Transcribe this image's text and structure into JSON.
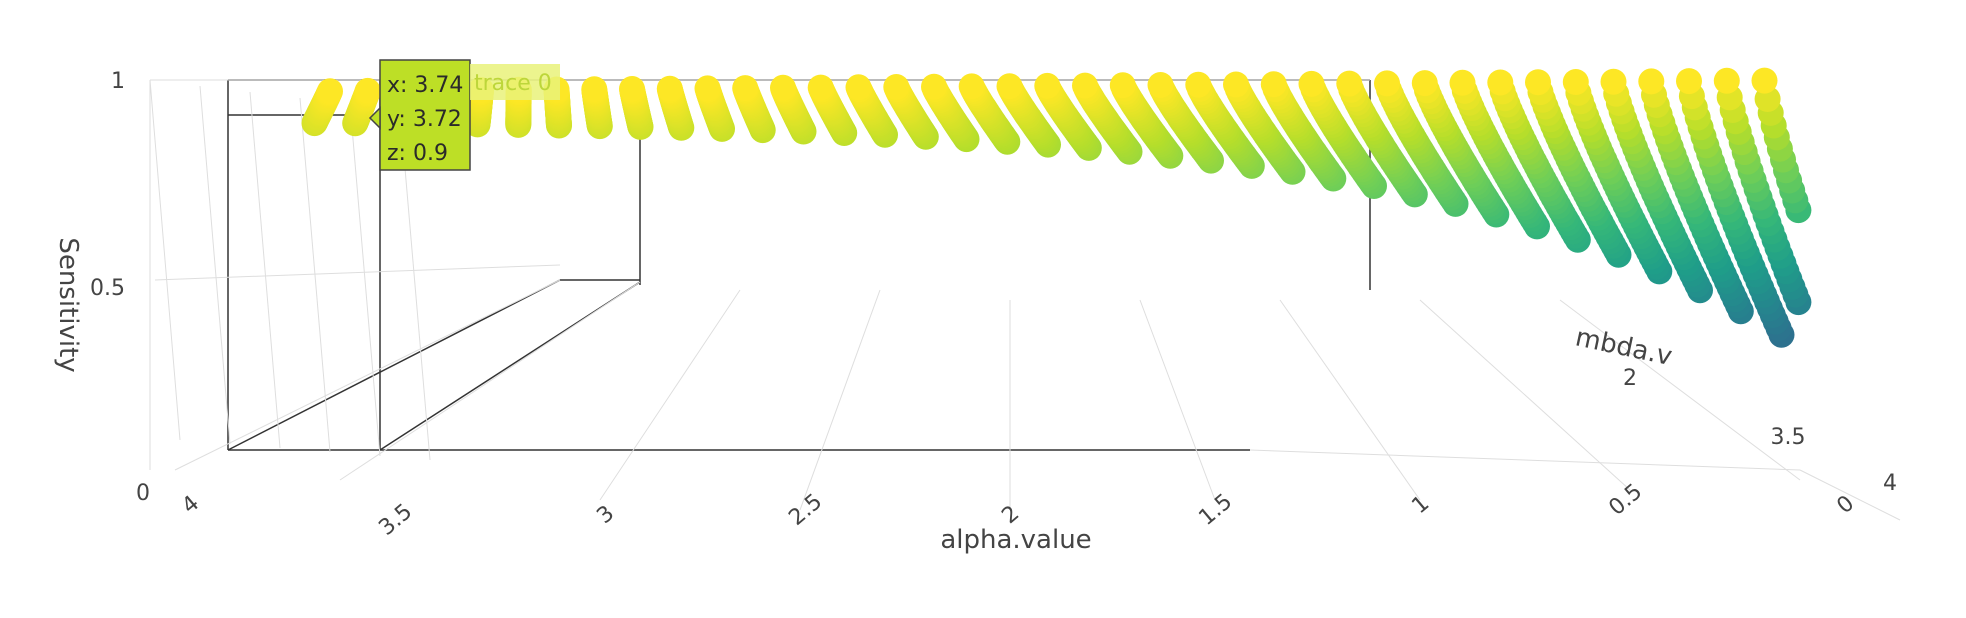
{
  "chart_data": {
    "type": "scatter3d",
    "colorscale": "Viridis",
    "color_by": "z",
    "axes": {
      "x": {
        "title": "alpha.value",
        "range": [
          0,
          4
        ],
        "ticks": [
          "0",
          "0.5",
          "1",
          "1.5",
          "2",
          "2.5",
          "3",
          "3.5",
          "4"
        ]
      },
      "y": {
        "title": "lambda.value",
        "visible_title": "mbda.v",
        "range": [
          0,
          4
        ],
        "ticks": [
          "2",
          "3.5",
          "4"
        ]
      },
      "z": {
        "title": "Sensitivity",
        "range": [
          0,
          1
        ],
        "ticks": [
          "0",
          "0.5",
          "1"
        ]
      }
    },
    "hover": {
      "x": "x: 3.74",
      "y": "y: 3.72",
      "z": "z: 0.9",
      "trace": "trace 0"
    },
    "series": [
      {
        "name": "trace 0",
        "description_of_surface": "Sensitivity rises with alpha.value and falls with lambda.value; points spaced on a regular grid",
        "sample_points": [
          {
            "x": 4.0,
            "y": 0.0,
            "z": 1.0
          },
          {
            "x": 3.5,
            "y": 0.0,
            "z": 1.0
          },
          {
            "x": 3.0,
            "y": 0.0,
            "z": 1.0
          },
          {
            "x": 2.0,
            "y": 0.0,
            "z": 1.0
          },
          {
            "x": 1.0,
            "y": 0.0,
            "z": 1.0
          },
          {
            "x": 0.5,
            "y": 0.5,
            "z": 0.95
          },
          {
            "x": 3.74,
            "y": 3.72,
            "z": 0.9
          },
          {
            "x": 2.5,
            "y": 2.0,
            "z": 0.8
          },
          {
            "x": 1.5,
            "y": 2.0,
            "z": 0.6
          },
          {
            "x": 1.0,
            "y": 2.5,
            "z": 0.45
          },
          {
            "x": 0.5,
            "y": 3.0,
            "z": 0.3
          },
          {
            "x": 0.3,
            "y": 3.5,
            "z": 0.15
          },
          {
            "x": 0.1,
            "y": 4.0,
            "z": 0.05
          }
        ]
      }
    ]
  }
}
